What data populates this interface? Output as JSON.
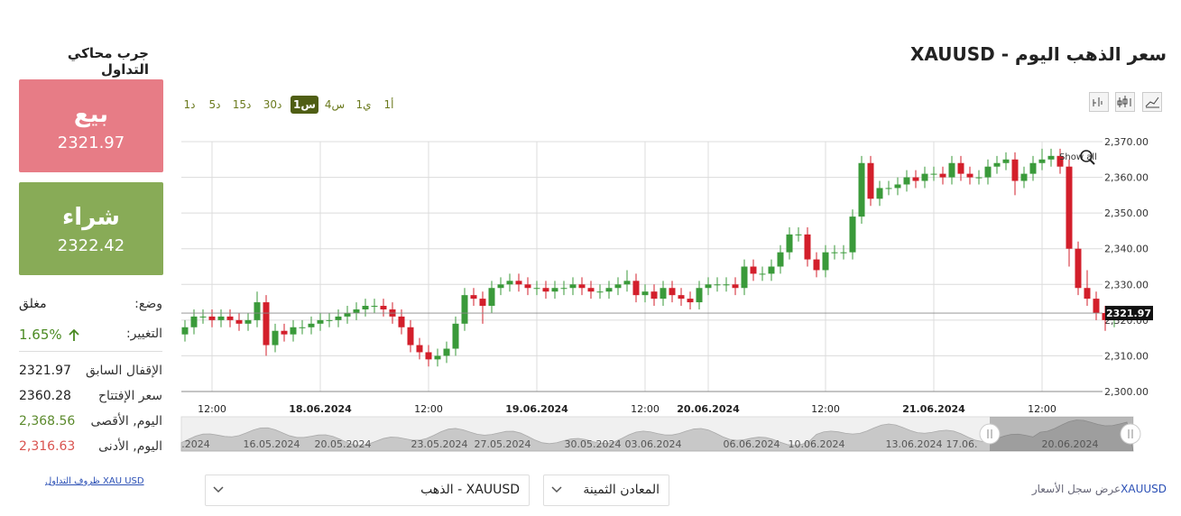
{
  "header": {
    "title": "سعر الذهب اليوم - XAUUSD"
  },
  "sidebar": {
    "title": "جرب محاكي التداول",
    "sell": {
      "label": "بيع",
      "price": "2321.97"
    },
    "buy": {
      "label": "شراء",
      "price": "2322.42"
    },
    "rows": [
      [
        "وضع:",
        "مغلق"
      ],
      [
        "التغيير:",
        "1.65%"
      ],
      [
        "الإقفال السابق",
        "2321.97"
      ],
      [
        "سعر الإفتتاح",
        "2360.28"
      ],
      [
        "اليوم, الأقصى",
        "2,368.56"
      ],
      [
        "اليوم, الأدنى",
        "2,316.63"
      ]
    ],
    "link": "XAU USD ظروف التداول"
  },
  "timeframes": [
    "1د",
    "5د",
    "15د",
    "30د",
    "1س",
    "4س",
    "1ي",
    "1أ"
  ],
  "chart_data": {
    "type": "candlestick",
    "categories": [
      null,
      null,
      null,
      "12:00",
      null,
      null,
      null,
      null,
      null,
      null,
      null,
      null,
      null,
      null,
      null,
      "18.06.2024",
      null,
      null,
      null,
      null,
      null,
      null,
      null,
      null,
      null,
      null,
      null,
      "12:00",
      null,
      null,
      null,
      null,
      null,
      null,
      null,
      null,
      null,
      null,
      null,
      "19.06.2024",
      null,
      null,
      null,
      null,
      null,
      null,
      null,
      null,
      null,
      null,
      null,
      "12:00",
      null,
      null,
      null,
      null,
      null,
      null,
      "20.06.2024",
      null,
      null,
      null,
      null,
      null,
      null,
      null,
      null,
      null,
      null,
      null,
      null,
      "12:00",
      null,
      null,
      null,
      null,
      null,
      null,
      null,
      null,
      null,
      null,
      null,
      "21.06.2024",
      null,
      null,
      null,
      null,
      null,
      null,
      null,
      null,
      null,
      null,
      null,
      "12:00",
      null,
      null,
      null,
      null,
      null,
      null,
      null,
      null
    ],
    "open": [
      2316,
      2318,
      2321,
      2321,
      2320,
      2321,
      2320,
      2319,
      2320,
      2325,
      2313,
      2317,
      2316,
      2318,
      2318,
      2319,
      2320,
      2320,
      2321,
      2322,
      2323,
      2324,
      2324,
      2323,
      2321,
      2318,
      2313,
      2311,
      2309,
      2310,
      2312,
      2319,
      2327,
      2326,
      2324,
      2329,
      2330,
      2331,
      2330,
      2329,
      2329,
      2328,
      2329,
      2329,
      2330,
      2329,
      2328,
      2328,
      2329,
      2330,
      2331,
      2327,
      2328,
      2326,
      2329,
      2327,
      2326,
      2325,
      2329,
      2330,
      2330,
      2330,
      2329,
      2335,
      2333,
      2333,
      2335,
      2339,
      2344,
      2344,
      2337,
      2334,
      2339,
      2339,
      2339,
      2349,
      2364,
      2354,
      2357,
      2357,
      2358,
      2360,
      2359,
      2361,
      2361,
      2360,
      2364,
      2361,
      2360,
      2360,
      2363,
      2364,
      2365,
      2359,
      2361,
      2364,
      2365,
      2366,
      2363,
      2340,
      2329,
      2326,
      2322,
      2320
    ],
    "high": [
      2320,
      2323,
      2323,
      2323,
      2323,
      2323,
      2322,
      2322,
      2328,
      2327,
      2319,
      2319,
      2320,
      2320,
      2321,
      2322,
      2322,
      2323,
      2324,
      2325,
      2326,
      2326,
      2326,
      2325,
      2323,
      2320,
      2315,
      2313,
      2312,
      2314,
      2321,
      2329,
      2329,
      2328,
      2331,
      2332,
      2333,
      2333,
      2332,
      2331,
      2331,
      2331,
      2331,
      2332,
      2332,
      2331,
      2330,
      2331,
      2332,
      2334,
      2333,
      2330,
      2330,
      2331,
      2331,
      2329,
      2328,
      2331,
      2332,
      2332,
      2332,
      2332,
      2337,
      2337,
      2335,
      2337,
      2341,
      2346,
      2346,
      2346,
      2339,
      2341,
      2341,
      2341,
      2351,
      2366,
      2366,
      2359,
      2359,
      2360,
      2362,
      2362,
      2363,
      2363,
      2363,
      2366,
      2366,
      2363,
      2362,
      2365,
      2366,
      2367,
      2367,
      2363,
      2366,
      2368,
      2368,
      2368,
      2365,
      2342,
      2334,
      2328,
      2324,
      2324
    ],
    "low": [
      2314,
      2316,
      2319,
      2318,
      2318,
      2318,
      2317,
      2317,
      2318,
      2310,
      2311,
      2314,
      2314,
      2316,
      2316,
      2317,
      2318,
      2318,
      2319,
      2320,
      2321,
      2322,
      2321,
      2319,
      2316,
      2311,
      2309,
      2307,
      2307,
      2308,
      2310,
      2317,
      2324,
      2319,
      2322,
      2327,
      2328,
      2328,
      2327,
      2327,
      2326,
      2326,
      2327,
      2327,
      2327,
      2326,
      2326,
      2326,
      2327,
      2328,
      2325,
      2325,
      2324,
      2324,
      2325,
      2324,
      2323,
      2323,
      2327,
      2328,
      2328,
      2327,
      2327,
      2331,
      2331,
      2331,
      2333,
      2337,
      2342,
      2335,
      2332,
      2332,
      2337,
      2337,
      2337,
      2347,
      2352,
      2352,
      2355,
      2355,
      2356,
      2357,
      2357,
      2359,
      2358,
      2358,
      2359,
      2358,
      2358,
      2358,
      2361,
      2362,
      2355,
      2357,
      2359,
      2362,
      2363,
      2361,
      2335,
      2327,
      2324,
      2320,
      2317,
      2318
    ],
    "close": [
      2318,
      2321,
      2321,
      2320,
      2321,
      2320,
      2319,
      2320,
      2325,
      2313,
      2317,
      2316,
      2318,
      2318,
      2319,
      2320,
      2320,
      2321,
      2322,
      2323,
      2324,
      2324,
      2323,
      2321,
      2318,
      2313,
      2311,
      2309,
      2310,
      2312,
      2319,
      2327,
      2326,
      2324,
      2329,
      2330,
      2331,
      2330,
      2329,
      2329,
      2328,
      2329,
      2329,
      2330,
      2329,
      2328,
      2328,
      2329,
      2330,
      2331,
      2327,
      2328,
      2326,
      2329,
      2327,
      2326,
      2325,
      2329,
      2330,
      2330,
      2330,
      2329,
      2335,
      2333,
      2333,
      2335,
      2339,
      2344,
      2344,
      2337,
      2334,
      2339,
      2339,
      2339,
      2349,
      2364,
      2354,
      2357,
      2357,
      2358,
      2360,
      2359,
      2361,
      2361,
      2360,
      2364,
      2361,
      2360,
      2360,
      2363,
      2364,
      2365,
      2359,
      2361,
      2364,
      2365,
      2366,
      2363,
      2340,
      2329,
      2326,
      2322,
      2320,
      2321.97
    ],
    "up_color": "#3a9a3a",
    "down_color": "#d31f2b",
    "ylim": [
      2300,
      2370
    ],
    "yticks": [
      {
        "value": 2300,
        "label": "2,300.00"
      },
      {
        "value": 2310,
        "label": "2,310.00"
      },
      {
        "value": 2320,
        "label": "2,320.00"
      },
      {
        "value": 2330,
        "label": "2,330.00"
      },
      {
        "value": 2340,
        "label": "2,340.00"
      },
      {
        "value": 2350,
        "label": "2,350.00"
      },
      {
        "value": 2360,
        "label": "2,360.00"
      },
      {
        "value": 2370,
        "label": "2,370.00"
      }
    ],
    "grid": true,
    "last_price": 2321.97,
    "show_all": "Show all",
    "navigator_labels": [
      ".2024",
      "16.05.2024",
      "20.05.2024",
      "23.05.2024",
      "27.05.2024",
      "30.05.2024",
      "03.06.2024",
      "06.06.2024",
      "10.06.2024",
      "13.06.2024",
      "17.06.",
      "20.06.2024"
    ]
  },
  "footer": {
    "instrument": "XAUUSD - الذهب",
    "category": "المعادن الثمينة",
    "history_link": {
      "symbol": "XAUUSD",
      "text": "عرض سجل الأسعار"
    }
  }
}
